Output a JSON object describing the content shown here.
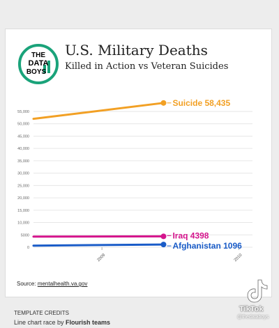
{
  "logo": {
    "line1": "THE",
    "line2": "DATA",
    "line3": "BOYS"
  },
  "header": {
    "title": "U.S. Military Deaths",
    "subtitle": "Killed in Action vs Veteran Suicides"
  },
  "source": {
    "label": "Source:",
    "link": "mentalhealth.va.gov"
  },
  "credits": {
    "heading": "TEMPLATE CREDITS",
    "text_prefix": "Line chart race by ",
    "text_bold": "Flourish teams"
  },
  "watermark": {
    "brand": "TikTok",
    "user": "@thedataboys"
  },
  "colors": {
    "suicide": "#f2a024",
    "iraq": "#d4148c",
    "afghanistan": "#1a5cc8"
  },
  "chart_data": {
    "type": "line",
    "title": "U.S. Military Deaths",
    "subtitle": "Killed in Action vs Veteran Suicides",
    "x_ticks": [
      "2009",
      "2010"
    ],
    "y_ticks": [
      0,
      5000,
      10000,
      15000,
      20000,
      25000,
      30000,
      35000,
      40000,
      45000,
      50000,
      55000
    ],
    "y_tick_labels": [
      "0",
      "5000",
      "10,000",
      "15,000",
      "20,000",
      "25,000",
      "30,000",
      "35,000",
      "40,000",
      "45,000",
      "50,000",
      "55,000"
    ],
    "ylim": [
      0,
      55000
    ],
    "xlim": [
      2008.5,
      2010.1
    ],
    "grid": true,
    "series": [
      {
        "name": "Suicide",
        "label": "Suicide 58,435",
        "color": "#f2a024",
        "x": [
          2008.5,
          2009.45
        ],
        "y": [
          52000,
          58435
        ]
      },
      {
        "name": "Iraq",
        "label": "Iraq 4398",
        "color": "#d4148c",
        "x": [
          2008.5,
          2009.45
        ],
        "y": [
          4300,
          4398
        ]
      },
      {
        "name": "Afghanistan",
        "label": "Afghanistan 1096",
        "color": "#1a5cc8",
        "x": [
          2008.5,
          2009.45
        ],
        "y": [
          650,
          1096
        ]
      }
    ]
  }
}
